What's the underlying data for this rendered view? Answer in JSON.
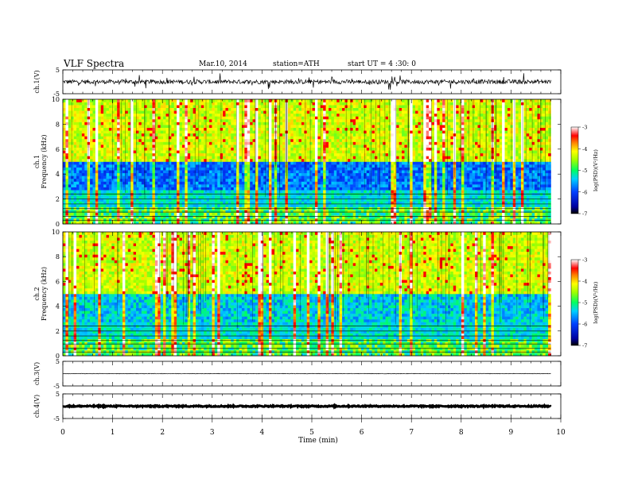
{
  "header": {
    "title": "VLF Spectra",
    "date": "Mar.10, 2014",
    "station": "station=ATH",
    "start": "start UT = 4 :30: 0"
  },
  "chart_data": [
    {
      "id": "ch1-waveform",
      "type": "line",
      "ylabel": "ch.1(V)",
      "ylim": [
        -5,
        5
      ],
      "y_ticks": [
        "5",
        "-5"
      ],
      "xlim": [
        0,
        10
      ],
      "baseline": 0.0,
      "noise_amplitude": 0.9
    },
    {
      "id": "ch1-spectrogram",
      "type": "heatmap",
      "ylabel": "ch.1\nFrequency (kHz)",
      "ylim": [
        0,
        10
      ],
      "y_ticks": [
        "0",
        "2",
        "4",
        "6",
        "8",
        "10"
      ],
      "xlim": [
        0,
        9.8
      ],
      "colorbar": {
        "label": "log(PSD)(V²/Hz)",
        "range": [
          -7,
          -3
        ],
        "ticks": [
          "-3",
          "-4",
          "-5",
          "-6",
          "-7"
        ]
      }
    },
    {
      "id": "ch2-spectrogram",
      "type": "heatmap",
      "ylabel": "ch.2\nFrequency (kHz)",
      "ylim": [
        0,
        10
      ],
      "y_ticks": [
        "0",
        "2",
        "4",
        "6",
        "8",
        "10"
      ],
      "xlim": [
        0,
        9.8
      ],
      "colorbar": {
        "label": "log(PSD)(V²/Hz)",
        "range": [
          -7,
          -3
        ],
        "ticks": [
          "-3",
          "-4",
          "-5",
          "-6",
          "-7"
        ]
      }
    },
    {
      "id": "ch3-waveform",
      "type": "line",
      "ylabel": "ch.3(V)",
      "ylim": [
        -5,
        5
      ],
      "y_ticks": [
        "5",
        "-5"
      ],
      "xlim": [
        0,
        10
      ],
      "baseline": 0.0,
      "noise_amplitude": 0.1
    },
    {
      "id": "ch4-waveform",
      "type": "line",
      "ylabel": "ch.4(V)",
      "ylim": [
        -5,
        5
      ],
      "y_ticks": [
        "5",
        "-5"
      ],
      "xlim": [
        0,
        10
      ],
      "baseline": 0.0,
      "noise_amplitude": 0.25
    }
  ],
  "x_axis": {
    "label": "Time (min)",
    "range": [
      0,
      10
    ],
    "ticks": [
      "0",
      "1",
      "2",
      "3",
      "4",
      "5",
      "6",
      "7",
      "8",
      "9",
      "10"
    ]
  }
}
